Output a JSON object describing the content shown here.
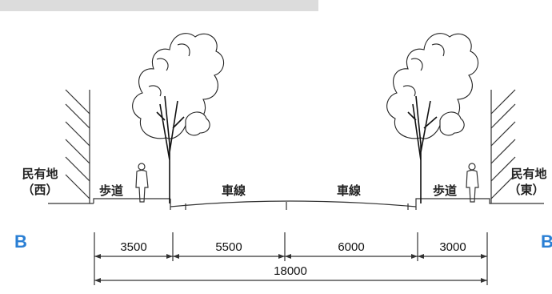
{
  "banner_text": "",
  "labels": {
    "private_west_line1": "民有地",
    "private_west_line2": "（西）",
    "private_east_line1": "民有地",
    "private_east_line2": "（東）",
    "sidewalk_left": "歩道",
    "sidewalk_right": "歩道",
    "lane_left": "車線",
    "lane_right": "車線"
  },
  "section_marks": {
    "left": "B",
    "right": "B"
  },
  "dimensions": {
    "segments": [
      "3500",
      "5500",
      "6000",
      "3000"
    ],
    "total": "18000"
  },
  "colors": {
    "section_mark": "#2a7fd4",
    "banner": "#dcdcdc",
    "line": "#333333"
  }
}
